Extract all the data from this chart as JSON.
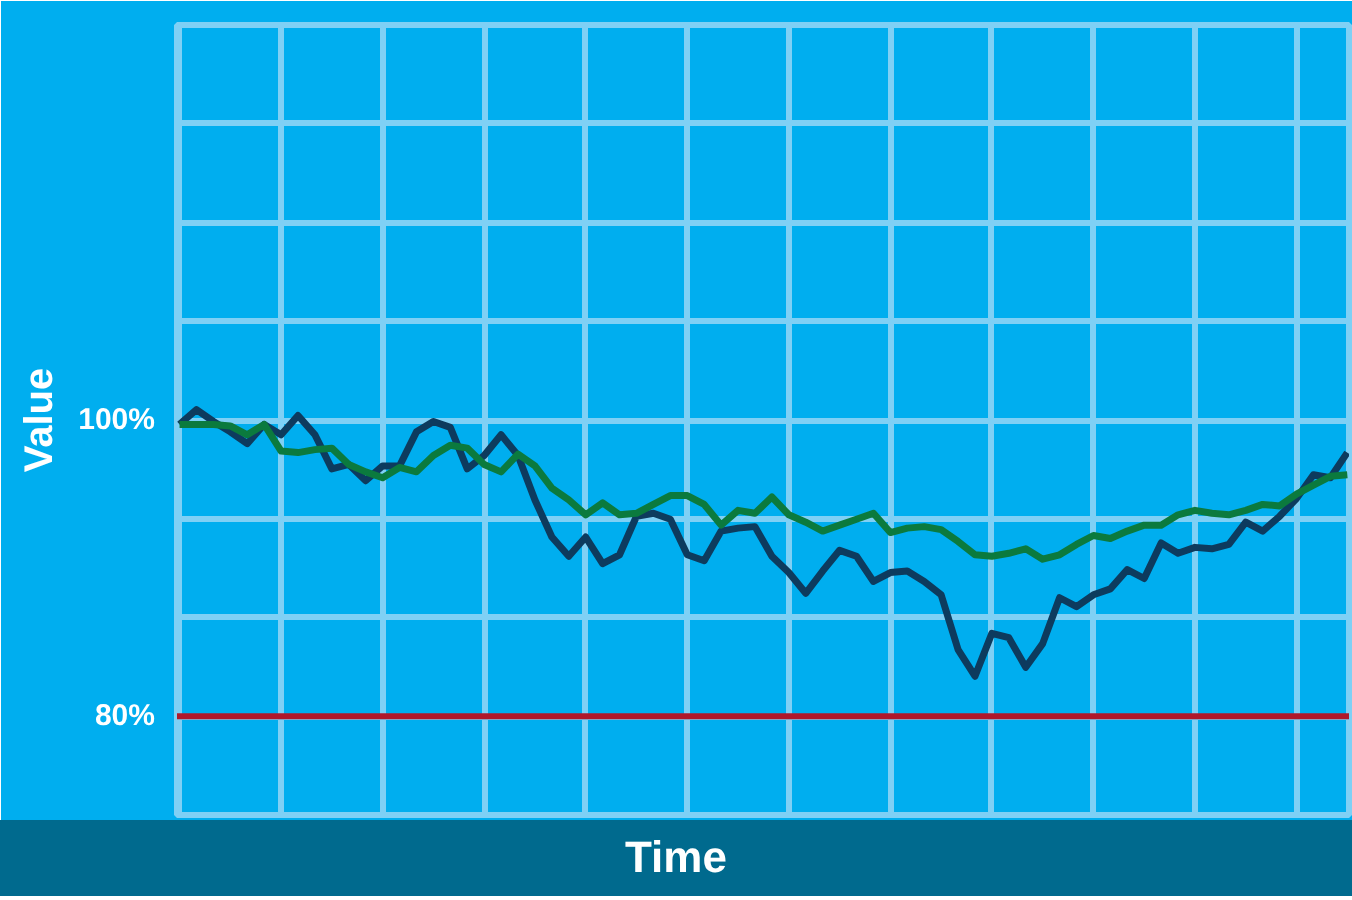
{
  "chart_data": {
    "type": "line",
    "xlabel": "Time",
    "ylabel": "Value",
    "categories": [
      null,
      null,
      null,
      null,
      null,
      null,
      null,
      null,
      null,
      null,
      null,
      null,
      null,
      null,
      null,
      null,
      null,
      null,
      null,
      null,
      null,
      null,
      null,
      null,
      null,
      null,
      null,
      null,
      null,
      null,
      null,
      null,
      null,
      null,
      null,
      null,
      null,
      null,
      null,
      null,
      null,
      null,
      null,
      null,
      null,
      null,
      null,
      null,
      null,
      null,
      null,
      null,
      null,
      null,
      null,
      null,
      null,
      null,
      null,
      null,
      null,
      null,
      null,
      null,
      null,
      null,
      null,
      null,
      null,
      null
    ],
    "ylim": [
      73.33,
      126.67
    ],
    "yticks": [
      {
        "value": 80,
        "label": "80%"
      },
      {
        "value": 86.67,
        "label": null
      },
      {
        "value": 93.33,
        "label": null
      },
      {
        "value": 100,
        "label": "100%"
      },
      {
        "value": 106.67,
        "label": null
      },
      {
        "value": 113.33,
        "label": null
      },
      {
        "value": 120,
        "label": null
      }
    ],
    "tick_labels": "y",
    "grid": true,
    "ref_lines": [
      {
        "axis": "y",
        "value": 80,
        "color": "#b0182a"
      }
    ],
    "series": [
      {
        "color": "#0d3b5e",
        "values": [
          99.7,
          100.7,
          99.9,
          99.2,
          98.4,
          99.7,
          99.0,
          100.3,
          99.0,
          96.7,
          97.0,
          95.9,
          96.9,
          96.9,
          99.2,
          99.9,
          99.5,
          96.7,
          97.6,
          99.0,
          97.6,
          94.6,
          92.1,
          90.8,
          92.1,
          90.3,
          90.9,
          93.5,
          93.7,
          93.3,
          90.9,
          90.5,
          92.5,
          92.7,
          92.8,
          90.8,
          89.7,
          88.3,
          89.8,
          91.2,
          90.8,
          89.1,
          89.7,
          89.8,
          89.1,
          88.2,
          84.5,
          82.7,
          85.6,
          85.3,
          83.3,
          84.9,
          88.0,
          87.4,
          88.2,
          88.6,
          89.9,
          89.3,
          91.7,
          91.0,
          91.4,
          91.3,
          91.6,
          93.1,
          92.5,
          93.5,
          94.7,
          96.3,
          96.1,
          97.8
        ]
      },
      {
        "color": "#0b7a3e",
        "values": [
          99.7,
          99.7,
          99.7,
          99.6,
          99.0,
          99.7,
          97.9,
          97.8,
          98.0,
          98.1,
          97.0,
          96.5,
          96.1,
          96.8,
          96.5,
          97.6,
          98.3,
          98.1,
          97.0,
          96.5,
          97.7,
          96.9,
          95.4,
          94.6,
          93.6,
          94.4,
          93.6,
          93.7,
          94.3,
          94.9,
          94.9,
          94.3,
          92.9,
          93.9,
          93.7,
          94.8,
          93.6,
          93.1,
          92.5,
          92.9,
          93.3,
          93.7,
          92.4,
          92.7,
          92.8,
          92.6,
          91.8,
          90.9,
          90.8,
          91.0,
          91.3,
          90.6,
          90.9,
          91.6,
          92.2,
          92.0,
          92.5,
          92.9,
          92.9,
          93.6,
          93.9,
          93.7,
          93.6,
          93.9,
          94.3,
          94.2,
          95.0,
          95.6,
          96.2,
          96.3
        ]
      }
    ]
  }
}
